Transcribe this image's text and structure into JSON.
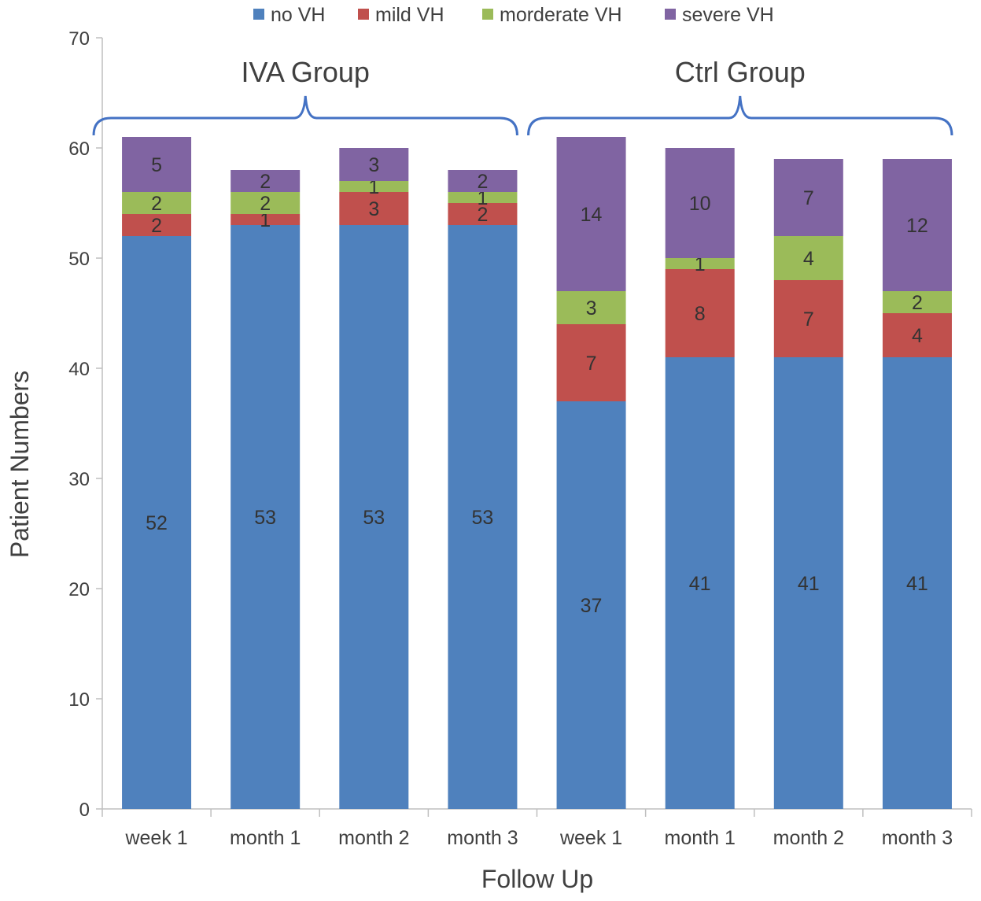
{
  "chart_data": {
    "type": "bar",
    "stacked": true,
    "title": "",
    "xlabel": "Follow Up",
    "ylabel": "Patient Numbers",
    "ylim": [
      0,
      70
    ],
    "yticks": [
      0,
      10,
      20,
      30,
      40,
      50,
      60,
      70
    ],
    "grid": false,
    "legend_position": "top",
    "categories": [
      "week 1",
      "month 1",
      "month 2",
      "month 3",
      "week 1",
      "month 1",
      "month 2",
      "month 3"
    ],
    "groups": [
      {
        "label": "IVA Group",
        "categories": [
          0,
          1,
          2,
          3
        ]
      },
      {
        "label": "Ctrl Group",
        "categories": [
          4,
          5,
          6,
          7
        ]
      }
    ],
    "series": [
      {
        "name": "no VH",
        "color": "#4f81bd",
        "values": [
          52,
          53,
          53,
          53,
          37,
          41,
          41,
          41
        ]
      },
      {
        "name": "mild VH",
        "color": "#c0504d",
        "values": [
          2,
          1,
          3,
          2,
          7,
          8,
          7,
          4
        ]
      },
      {
        "name": "morderate VH",
        "color": "#9bbb59",
        "values": [
          2,
          2,
          1,
          1,
          3,
          1,
          4,
          2
        ]
      },
      {
        "name": "severe VH",
        "color": "#8064a2",
        "values": [
          5,
          2,
          3,
          2,
          14,
          10,
          7,
          12
        ]
      }
    ],
    "bracket_color": "#4472c4"
  }
}
